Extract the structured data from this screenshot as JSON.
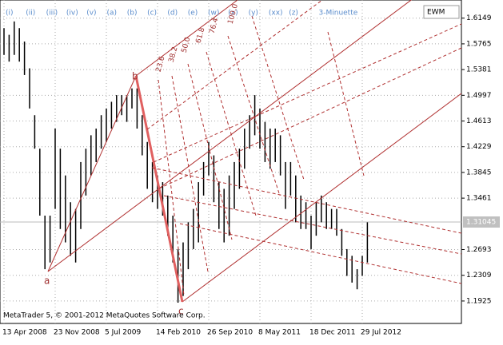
{
  "chart_data": {
    "type": "ohlc",
    "watermark": "MetaTrader 5, © 2001-2012 MetaQuotes Software Corp.",
    "badge": "EWM",
    "wave_labels": [
      "(i)",
      "(ii)",
      "(iii)",
      "(iv)",
      "(v)",
      "(a)",
      "(b)",
      "(c)",
      "(d)",
      "(e)",
      "(w)",
      "(x)",
      "(y)",
      "(xx)",
      "(z)",
      "3-Minuette"
    ],
    "point_labels": [
      "a",
      "b",
      "c"
    ],
    "fib_labels": [
      "23.6",
      "38.2",
      "50.0",
      "61.8",
      "76.4",
      "100.0"
    ],
    "categories": [
      "13 Apr 2008",
      null,
      null,
      null,
      null,
      null,
      null,
      null,
      null,
      null,
      "23 Nov 2008",
      null,
      null,
      null,
      null,
      null,
      null,
      null,
      null,
      null,
      "5 Jul 2009",
      null,
      null,
      null,
      null,
      null,
      null,
      null,
      null,
      null,
      "14 Feb 2010",
      null,
      null,
      null,
      null,
      null,
      null,
      null,
      null,
      null,
      "26 Sep 2010",
      null,
      null,
      null,
      null,
      null,
      null,
      null,
      null,
      null,
      "8 May 2011",
      null,
      null,
      null,
      null,
      null,
      null,
      null,
      null,
      null,
      "18 Dec 2011",
      null,
      null,
      null,
      null,
      null,
      null,
      null,
      null,
      null,
      "29 Jul 2012",
      null
    ],
    "high": [
      1.6,
      1.59,
      1.61,
      1.6,
      1.58,
      1.54,
      1.47,
      1.42,
      1.32,
      1.32,
      1.45,
      1.42,
      1.38,
      1.34,
      1.33,
      1.4,
      1.42,
      1.44,
      1.45,
      1.47,
      1.48,
      1.49,
      1.5,
      1.5,
      1.5,
      1.51,
      1.51,
      1.47,
      1.43,
      1.4,
      1.38,
      1.37,
      1.35,
      1.32,
      1.27,
      1.28,
      1.31,
      1.33,
      1.37,
      1.4,
      1.43,
      1.41,
      1.37,
      1.36,
      1.38,
      1.4,
      1.42,
      1.45,
      1.47,
      1.5,
      1.48,
      1.46,
      1.45,
      1.45,
      1.44,
      1.4,
      1.4,
      1.38,
      1.35,
      1.34,
      1.32,
      1.34,
      1.35,
      1.34,
      1.33,
      1.33,
      1.3,
      1.27,
      1.26,
      1.24,
      1.26,
      1.31
    ],
    "low": [
      1.56,
      1.55,
      1.56,
      1.55,
      1.53,
      1.48,
      1.42,
      1.32,
      1.24,
      1.25,
      1.33,
      1.3,
      1.28,
      1.26,
      1.25,
      1.3,
      1.35,
      1.38,
      1.4,
      1.42,
      1.43,
      1.45,
      1.46,
      1.47,
      1.46,
      1.48,
      1.45,
      1.41,
      1.36,
      1.34,
      1.33,
      1.32,
      1.29,
      1.25,
      1.19,
      1.2,
      1.24,
      1.27,
      1.28,
      1.35,
      1.38,
      1.34,
      1.3,
      1.28,
      1.29,
      1.33,
      1.36,
      1.39,
      1.42,
      1.44,
      1.42,
      1.4,
      1.39,
      1.4,
      1.38,
      1.33,
      1.35,
      1.31,
      1.3,
      1.3,
      1.27,
      1.29,
      1.31,
      1.3,
      1.3,
      1.29,
      1.26,
      1.23,
      1.22,
      1.21,
      1.23,
      1.25
    ],
    "color": "#000000",
    "last_price": 1.31045,
    "ylim": [
      1.159,
      1.642
    ],
    "yticks": [
      1.6149,
      1.5765,
      1.5381,
      1.4997,
      1.4613,
      1.4229,
      1.3845,
      1.3461,
      1.2693,
      1.2309,
      1.1925
    ],
    "grid": true
  }
}
